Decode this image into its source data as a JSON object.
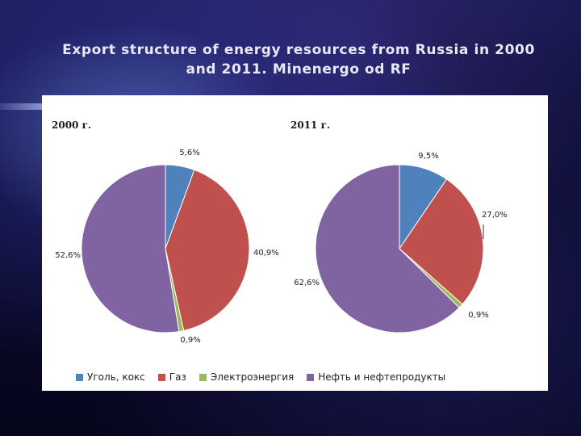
{
  "slide": {
    "title": "Export structure of energy resources from Russia in 2000 and 2011. Minenergo od RF"
  },
  "colors": {
    "coal": "#4f81bd",
    "gas": "#c0504d",
    "electricity": "#9bbb59",
    "oil": "#8064a2"
  },
  "chart_data": [
    {
      "type": "pie",
      "title": "2000 г.",
      "categories": [
        "Уголь, кокс",
        "Газ",
        "Электроэнергия",
        "Нефть и нефтепродукты"
      ],
      "values": [
        5.6,
        40.9,
        0.9,
        52.6
      ],
      "labels": [
        "5,6%",
        "40,9%",
        "0,9%",
        "52,6%"
      ]
    },
    {
      "type": "pie",
      "title": "2011 г.",
      "categories": [
        "Уголь, кокс",
        "Газ",
        "Электроэнергия",
        "Нефть и нефтепродукты"
      ],
      "values": [
        9.5,
        27.0,
        0.9,
        62.6
      ],
      "labels": [
        "9,5%",
        "27,0%",
        "0,9%",
        "62,6%"
      ]
    }
  ],
  "legend": [
    {
      "label": "Уголь, кокс",
      "color_key": "coal"
    },
    {
      "label": "Газ",
      "color_key": "gas"
    },
    {
      "label": "Электроэнергия",
      "color_key": "electricity"
    },
    {
      "label": "Нефть и нефтепродукты",
      "color_key": "oil"
    }
  ]
}
